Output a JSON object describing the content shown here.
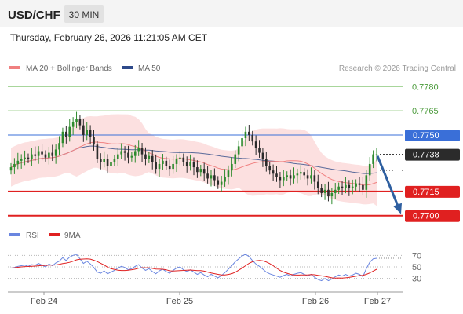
{
  "header": {
    "symbol": "USD/CHF",
    "timeframe": "30 MIN",
    "datetime": "Thursday, February 26, 2026 11:21:05 AM CET"
  },
  "legend": {
    "ma20": "MA 20 + Bollinger Bands",
    "ma50": "MA 50",
    "credit": "Research © 2026 Trading Central",
    "rsi": "RSI",
    "rsi_ma": "9MA"
  },
  "colors": {
    "bull": "#2e8b2e",
    "bear": "#2b2b2b",
    "ma20": "#f08080",
    "band": "#fbd6d6",
    "ma50": "#5a6a9a",
    "support": "#e02020",
    "resistance": "#8cc87a",
    "pivot": "#3a6fd8",
    "arrow": "#2e5fa0",
    "rsi": "#6a86e0",
    "rsi_ma": "#e02020"
  },
  "chart_data": [
    {
      "type": "candlestick",
      "title": "USD/CHF",
      "timeframe": "30 MIN",
      "ylim": [
        0.7695,
        0.7785
      ],
      "x_ticks": [
        "Feb 24",
        "Feb 25",
        "Feb 26",
        "Feb 27"
      ],
      "levels": [
        {
          "value": 0.778,
          "label": "0.7780",
          "kind": "resistance"
        },
        {
          "value": 0.7765,
          "label": "0.7765",
          "kind": "resistance"
        },
        {
          "value": 0.775,
          "label": "0.7750",
          "kind": "pivot"
        },
        {
          "value": 0.7715,
          "label": "0.7715",
          "kind": "support"
        },
        {
          "value": 0.77,
          "label": "0.7700",
          "kind": "support"
        }
      ],
      "last_price": {
        "value": 0.7738,
        "label": "0.7738"
      },
      "close": [
        0.773,
        0.7732,
        0.7734,
        0.7735,
        0.7736,
        0.7735,
        0.7738,
        0.7737,
        0.774,
        0.7738,
        0.7736,
        0.7739,
        0.7737,
        0.7741,
        0.7745,
        0.7752,
        0.7749,
        0.7755,
        0.7758,
        0.776,
        0.7756,
        0.775,
        0.7753,
        0.7749,
        0.7744,
        0.7735,
        0.7733,
        0.7735,
        0.7731,
        0.7733,
        0.7735,
        0.7738,
        0.774,
        0.7739,
        0.7736,
        0.7737,
        0.774,
        0.7742,
        0.7738,
        0.7735,
        0.7737,
        0.7733,
        0.7729,
        0.7732,
        0.7734,
        0.7731,
        0.7729,
        0.7732,
        0.7735,
        0.7736,
        0.7733,
        0.7731,
        0.7733,
        0.773,
        0.7727,
        0.7729,
        0.7726,
        0.7723,
        0.7725,
        0.7722,
        0.7719,
        0.7721,
        0.7724,
        0.7728,
        0.7732,
        0.7738,
        0.7743,
        0.7748,
        0.7752,
        0.775,
        0.7746,
        0.7742,
        0.7739,
        0.7735,
        0.7731,
        0.7728,
        0.7726,
        0.7724,
        0.7722,
        0.7724,
        0.7725,
        0.7723,
        0.7725,
        0.7726,
        0.7727,
        0.7725,
        0.7723,
        0.7725,
        0.7721,
        0.7717,
        0.7714,
        0.7716,
        0.7712,
        0.7714,
        0.7716,
        0.7718,
        0.7717,
        0.7719,
        0.7717,
        0.7718,
        0.772,
        0.7719,
        0.7716,
        0.7725,
        0.7732,
        0.7738,
        0.7738
      ],
      "rsi_ylim": [
        20,
        80
      ],
      "rsi_ticks": [
        70,
        50,
        30
      ],
      "rsi": [
        48,
        49,
        51,
        52,
        53,
        51,
        54,
        53,
        56,
        53,
        50,
        55,
        52,
        57,
        60,
        66,
        61,
        67,
        70,
        72,
        64,
        56,
        60,
        55,
        49,
        41,
        39,
        43,
        38,
        41,
        44,
        48,
        51,
        49,
        45,
        47,
        51,
        54,
        48,
        44,
        47,
        42,
        38,
        43,
        46,
        42,
        39,
        44,
        48,
        50,
        45,
        42,
        45,
        41,
        37,
        40,
        36,
        33,
        37,
        34,
        31,
        35,
        40,
        46,
        52,
        59,
        64,
        69,
        72,
        68,
        61,
        55,
        51,
        46,
        41,
        38,
        36,
        34,
        32,
        35,
        37,
        34,
        37,
        39,
        40,
        37,
        34,
        37,
        32,
        28,
        26,
        30,
        26,
        29,
        33,
        36,
        34,
        37,
        34,
        36,
        39,
        37,
        33,
        47,
        58,
        64,
        65
      ]
    }
  ]
}
